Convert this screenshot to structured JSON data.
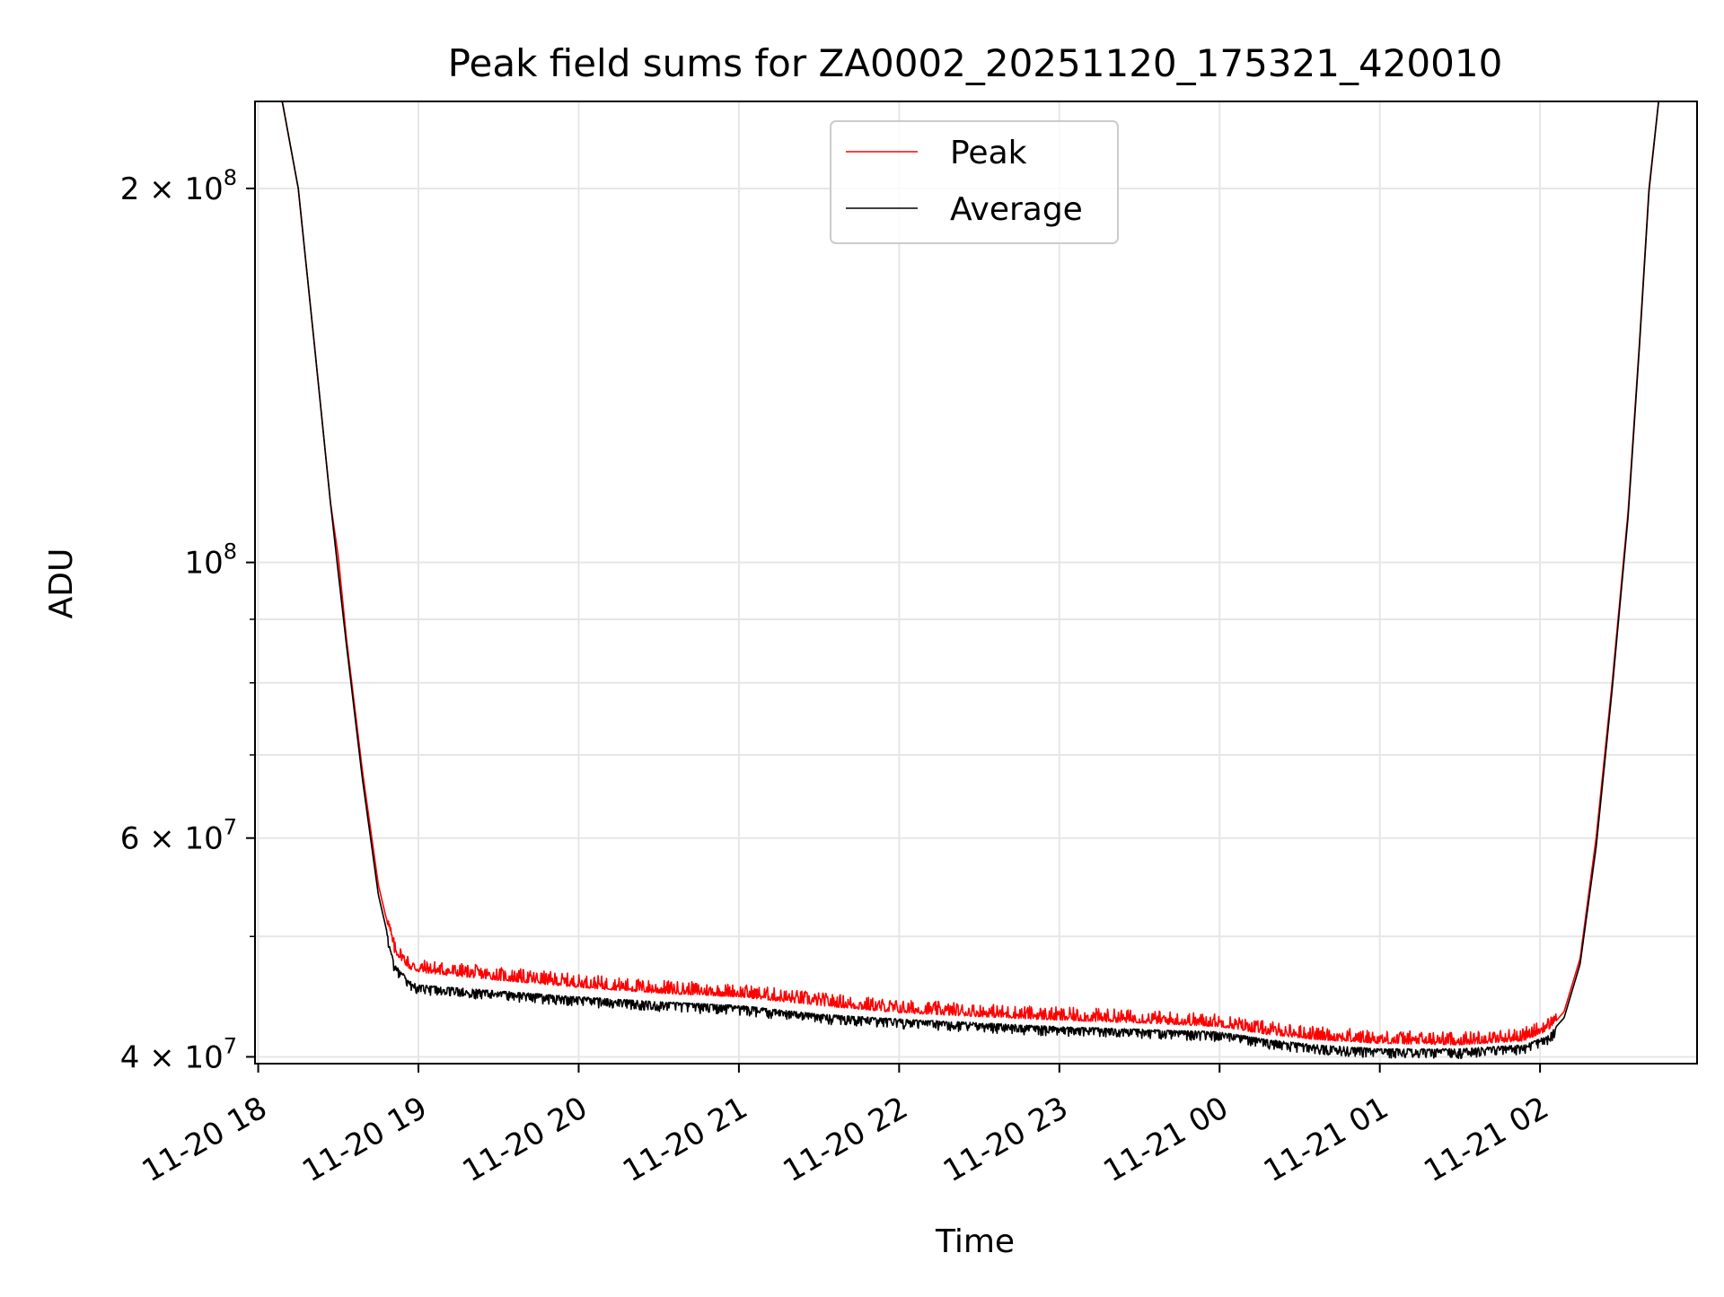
{
  "chart_data": {
    "type": "line",
    "title": "Peak field sums for ZA0002_20251120_175321_420010",
    "xlabel": "Time",
    "ylabel": "ADU",
    "yscale": "log",
    "ylim": [
      39500000,
      235000000
    ],
    "xlim_hours": [
      -0.02,
      8.98
    ],
    "grid": true,
    "legend_position": "upper center",
    "x_ticks": [
      {
        "hour": 0,
        "label": "11-20 18"
      },
      {
        "hour": 1,
        "label": "11-20 19"
      },
      {
        "hour": 2,
        "label": "11-20 20"
      },
      {
        "hour": 3,
        "label": "11-20 21"
      },
      {
        "hour": 4,
        "label": "11-20 22"
      },
      {
        "hour": 5,
        "label": "11-20 23"
      },
      {
        "hour": 6,
        "label": "11-21 00"
      },
      {
        "hour": 7,
        "label": "11-21 01"
      },
      {
        "hour": 8,
        "label": "11-21 02"
      }
    ],
    "y_ticks": [
      {
        "value": 40000000,
        "base": "4",
        "exp": "7"
      },
      {
        "value": 60000000,
        "base": "6",
        "exp": "7"
      },
      {
        "value": 100000000,
        "base": "",
        "exp": "8"
      },
      {
        "value": 200000000,
        "base": "2",
        "exp": "8"
      }
    ],
    "y_minor_ticks": [
      50000000,
      70000000,
      80000000,
      90000000
    ],
    "series": [
      {
        "name": "Peak",
        "color": "#ff0000",
        "noise_amplitude": 0.025,
        "points": [
          [
            -0.02,
            235000000
          ],
          [
            0.15,
            235000000
          ],
          [
            0.25,
            200000000
          ],
          [
            0.35,
            150000000
          ],
          [
            0.45,
            112000000
          ],
          [
            0.5,
            101000000
          ],
          [
            0.55,
            87000000
          ],
          [
            0.65,
            68000000
          ],
          [
            0.75,
            55000000
          ],
          [
            0.85,
            48500000
          ],
          [
            0.95,
            47000000
          ],
          [
            1.0,
            46800000
          ],
          [
            1.5,
            46100000
          ],
          [
            2.0,
            45500000
          ],
          [
            2.5,
            45000000
          ],
          [
            3.0,
            44700000
          ],
          [
            3.5,
            44000000
          ],
          [
            4.0,
            43400000
          ],
          [
            4.5,
            43100000
          ],
          [
            5.0,
            42800000
          ],
          [
            5.5,
            42600000
          ],
          [
            6.0,
            42300000
          ],
          [
            6.3,
            41700000
          ],
          [
            6.6,
            41300000
          ],
          [
            7.0,
            41000000
          ],
          [
            7.5,
            40900000
          ],
          [
            7.9,
            41200000
          ],
          [
            8.05,
            42000000
          ],
          [
            8.15,
            43500000
          ],
          [
            8.25,
            48000000
          ],
          [
            8.35,
            60000000
          ],
          [
            8.45,
            80000000
          ],
          [
            8.55,
            110000000
          ],
          [
            8.62,
            150000000
          ],
          [
            8.68,
            200000000
          ],
          [
            8.74,
            235000000
          ],
          [
            8.98,
            235000000
          ]
        ]
      },
      {
        "name": "Average",
        "color": "#000000",
        "noise_amplitude": 0.018,
        "points": [
          [
            -0.02,
            235000000
          ],
          [
            0.15,
            235000000
          ],
          [
            0.25,
            200000000
          ],
          [
            0.35,
            150000000
          ],
          [
            0.45,
            112000000
          ],
          [
            0.5,
            98000000
          ],
          [
            0.55,
            86000000
          ],
          [
            0.65,
            67000000
          ],
          [
            0.75,
            54000000
          ],
          [
            0.85,
            47500000
          ],
          [
            0.95,
            46000000
          ],
          [
            1.0,
            45700000
          ],
          [
            1.5,
            45200000
          ],
          [
            2.0,
            44700000
          ],
          [
            2.5,
            44300000
          ],
          [
            3.0,
            44000000
          ],
          [
            3.5,
            43300000
          ],
          [
            4.0,
            42900000
          ],
          [
            4.5,
            42600000
          ],
          [
            5.0,
            42300000
          ],
          [
            5.5,
            42100000
          ],
          [
            6.0,
            41900000
          ],
          [
            6.3,
            41300000
          ],
          [
            6.6,
            40900000
          ],
          [
            7.0,
            40600000
          ],
          [
            7.5,
            40600000
          ],
          [
            7.9,
            40900000
          ],
          [
            8.05,
            41600000
          ],
          [
            8.15,
            43000000
          ],
          [
            8.25,
            47500000
          ],
          [
            8.35,
            59000000
          ],
          [
            8.45,
            79000000
          ],
          [
            8.55,
            109000000
          ],
          [
            8.62,
            149000000
          ],
          [
            8.68,
            199000000
          ],
          [
            8.74,
            235000000
          ],
          [
            8.98,
            235000000
          ]
        ]
      }
    ]
  }
}
